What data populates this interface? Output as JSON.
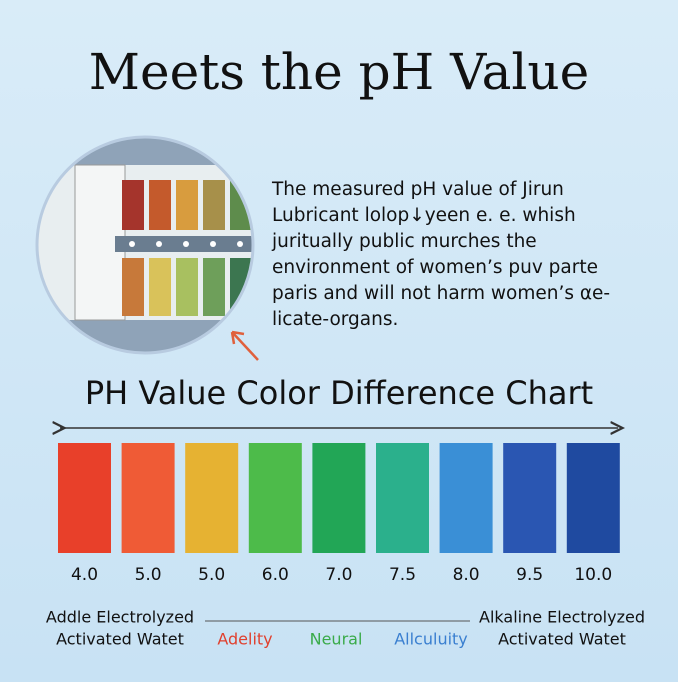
{
  "header": {
    "title": "Meets the pH Value"
  },
  "description": {
    "lines": [
      "The measured pH value of Jirun",
      "Lubricant lolop↓yeen e. e. whish",
      "juritually public murches the",
      "environment of women’s puv parte",
      "paris and will not harm women’s αe-",
      "licate-organs."
    ]
  },
  "scale": {
    "title": "PH Value Color Difference Chart",
    "swatches": [
      {
        "label": "4.0",
        "color": "#e8402a"
      },
      {
        "label": "5.0",
        "color": "#ef5b36"
      },
      {
        "label": "5.0",
        "color": "#e6b232"
      },
      {
        "label": "6.0",
        "color": "#4dbb4a"
      },
      {
        "label": "7.0",
        "color": "#22a656"
      },
      {
        "label": "7.5",
        "color": "#2bb08c"
      },
      {
        "label": "8.0",
        "color": "#3a8fd6"
      },
      {
        "label": "9.5",
        "color": "#2a56b2"
      },
      {
        "label": "10.0",
        "color": "#1f4aa0"
      }
    ],
    "left_label": [
      "Addle Electrolyzed",
      "Activated Watet"
    ],
    "right_label": [
      "Alkaline Electrolyzed",
      "Activated Watet"
    ],
    "middle_labels": [
      {
        "text": "Adelity",
        "color": "#e0402e"
      },
      {
        "text": "Neural",
        "color": "#3aab4a"
      },
      {
        "text": "Allculuity",
        "color": "#3a7fd0"
      }
    ]
  }
}
